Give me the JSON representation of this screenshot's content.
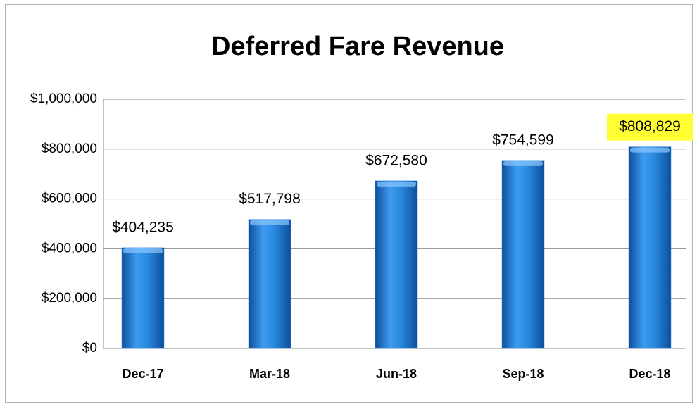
{
  "chart_data": {
    "type": "bar",
    "title": "Deferred Fare Revenue",
    "categories": [
      "Dec-17",
      "Mar-18",
      "Jun-18",
      "Sep-18",
      "Dec-18"
    ],
    "values": [
      404235,
      517798,
      672580,
      754599,
      808829
    ],
    "value_labels": [
      "$404,235",
      "$517,798",
      "$672,580",
      "$754,599",
      "$808,829"
    ],
    "color": "#2a8ae0",
    "ylim": [
      0,
      1000000
    ],
    "yticks": [
      {
        "value": 0,
        "label": "$0"
      },
      {
        "value": 200000,
        "label": "$200,000"
      },
      {
        "value": 400000,
        "label": "$400,000"
      },
      {
        "value": 600000,
        "label": "$600,000"
      },
      {
        "value": 800000,
        "label": "$800,000"
      },
      {
        "value": 1000000,
        "label": "$1,000,000"
      }
    ],
    "grid": true,
    "highlight": {
      "index": 4,
      "color": "#ffff33"
    }
  }
}
